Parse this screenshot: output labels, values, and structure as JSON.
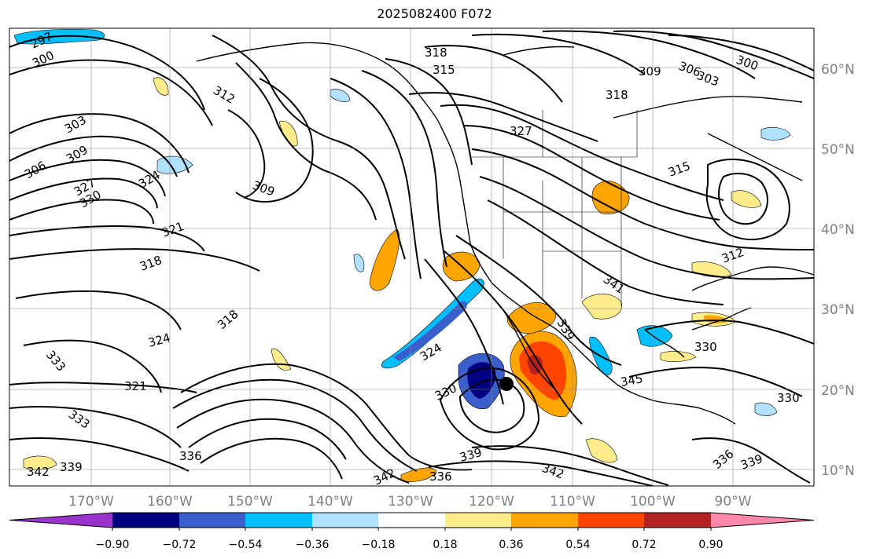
{
  "title": "2025082400 F072",
  "map": {
    "lon_labels": [
      "170°W",
      "160°W",
      "150°W",
      "140°W",
      "130°W",
      "120°W",
      "110°W",
      "100°W",
      "90°W"
    ],
    "lat_labels": [
      "60°N",
      "50°N",
      "40°N",
      "30°N",
      "20°N",
      "10°N"
    ],
    "contour_labels": [
      "297",
      "300",
      "303",
      "306",
      "309",
      "312",
      "315",
      "318",
      "321",
      "324",
      "327",
      "330",
      "333",
      "336",
      "339",
      "342",
      "345"
    ],
    "marker": {
      "name": "storm-center",
      "lon": -118.5,
      "lat": 20.7
    }
  },
  "colorbar": {
    "ticks": [
      "−0.90",
      "−0.72",
      "−0.54",
      "−0.36",
      "−0.18",
      "0.18",
      "0.36",
      "0.54",
      "0.72",
      "0.90"
    ],
    "colors": [
      "#9933cc",
      "#000080",
      "#3a5fcd",
      "#00bfff",
      "#b0e2ff",
      "#ffffff",
      "#ffec8b",
      "#ffa500",
      "#ff4500",
      "#b22222",
      "#ff88aa"
    ]
  }
}
